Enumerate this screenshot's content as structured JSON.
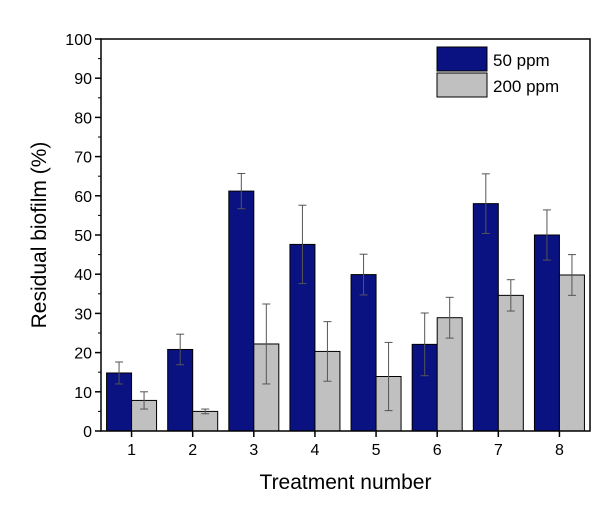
{
  "chart_data": {
    "type": "bar",
    "title": "",
    "xlabel": "Treatment number",
    "ylabel": "Residual biofilm (%)",
    "categories": [
      "1",
      "2",
      "3",
      "4",
      "5",
      "6",
      "7",
      "8"
    ],
    "ylim": [
      0,
      100
    ],
    "yticks": [
      0,
      10,
      20,
      30,
      40,
      50,
      60,
      70,
      80,
      90,
      100
    ],
    "grid": false,
    "legend_position": "top-right",
    "series": [
      {
        "name": "50 ppm",
        "color": "#0a1180",
        "values": [
          14.8,
          20.8,
          61.2,
          47.6,
          39.9,
          22.1,
          58.0,
          50.0
        ],
        "errors": [
          2.8,
          3.9,
          4.5,
          10.0,
          5.2,
          8.0,
          7.6,
          6.4
        ]
      },
      {
        "name": "200 ppm",
        "color": "#c0c0c0",
        "values": [
          7.8,
          5.0,
          22.2,
          20.3,
          13.9,
          28.9,
          34.6,
          39.8
        ],
        "errors": [
          2.2,
          0.6,
          10.2,
          7.6,
          8.7,
          5.2,
          4.0,
          5.2
        ]
      }
    ]
  }
}
